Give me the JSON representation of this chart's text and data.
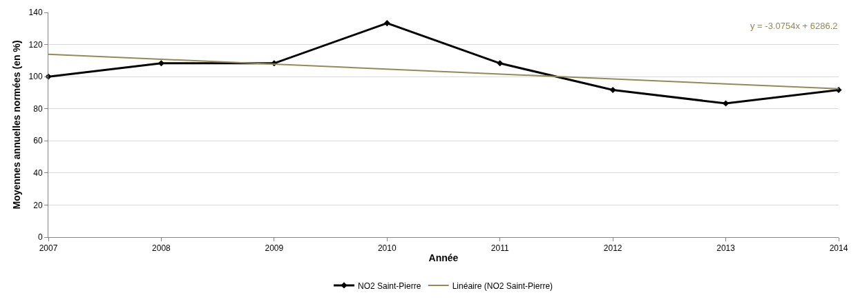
{
  "chart_data": {
    "type": "line",
    "xlabel": "Année",
    "ylabel": "Moyennes annuelles normées (en %)",
    "x": [
      2007,
      2008,
      2009,
      2010,
      2011,
      2012,
      2013,
      2014
    ],
    "series": [
      {
        "name": "NO2 Saint-Pierre",
        "color": "#000000",
        "marker": "diamond",
        "values": [
          100,
          108.3,
          108.3,
          133.3,
          108.3,
          91.7,
          83.3,
          91.7
        ]
      },
      {
        "name": "Linéaire (NO2 Saint-Pierre)",
        "color": "#948a54",
        "marker": "none",
        "x": [
          2007,
          2014
        ],
        "values": [
          113.9,
          92.4
        ]
      }
    ],
    "annotations": [
      "y = -3.0754x + 6286.2"
    ],
    "xlim": [
      2007,
      2014
    ],
    "xticks": [
      2007,
      2008,
      2009,
      2010,
      2011,
      2012,
      2013,
      2014
    ],
    "ylim": [
      0,
      140
    ],
    "yticks": [
      0,
      20,
      40,
      60,
      80,
      100,
      120,
      140
    ],
    "grid": "y",
    "legend": "bottom",
    "line_style": "solid"
  }
}
